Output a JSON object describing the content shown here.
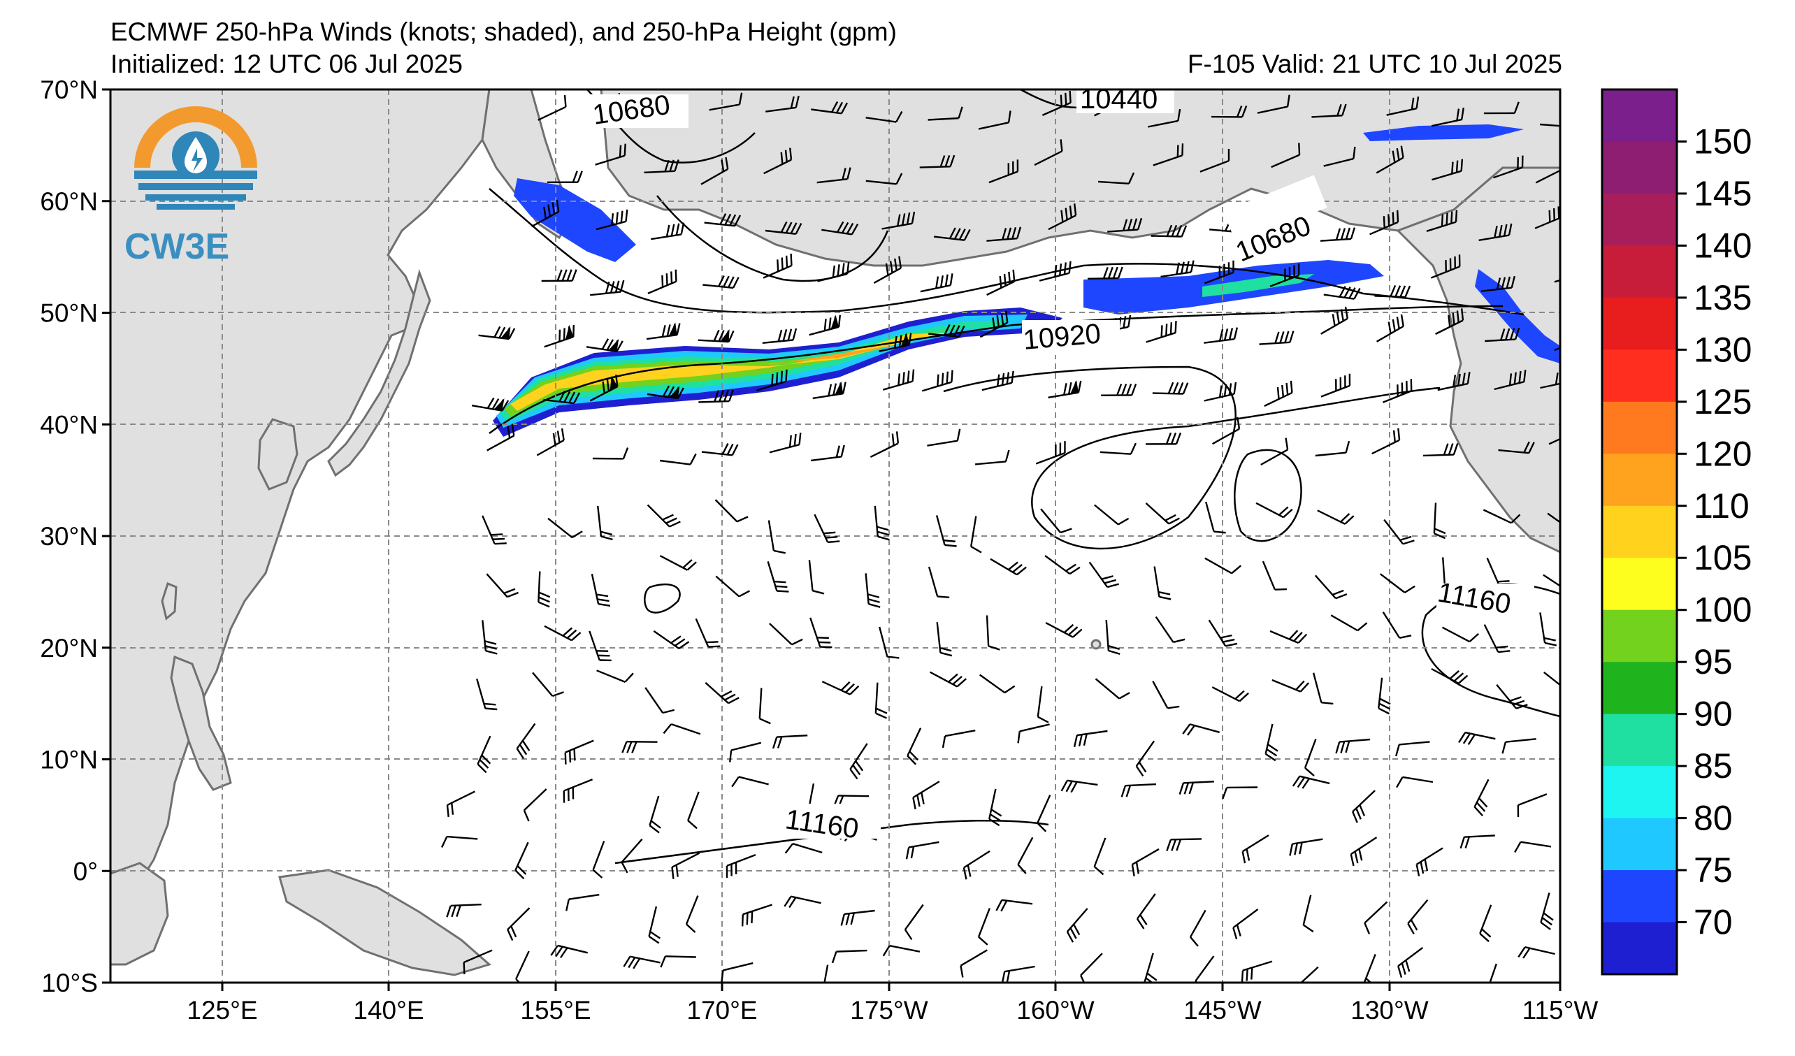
{
  "title": {
    "line1": "ECMWF 250-hPa Winds (knots; shaded), and 250-hPa Height (gpm)",
    "line2": "Initialized: 12 UTC 06 Jul 2025",
    "valid": "F-105  Valid: 21 UTC 10 Jul 2025"
  },
  "logo": {
    "text": "CW3E",
    "icon": "water-drop-sun-icon",
    "colors": {
      "orange": "#f39a2e",
      "blue": "#2f86b8"
    }
  },
  "lat_labels": [
    "70°N",
    "60°N",
    "50°N",
    "40°N",
    "30°N",
    "20°N",
    "10°N",
    "0°",
    "10°S"
  ],
  "lon_labels": [
    "125°E",
    "140°E",
    "155°E",
    "170°E",
    "175°W",
    "160°W",
    "145°W",
    "130°W",
    "115°W"
  ],
  "contour_labels": [
    "10680",
    "10440",
    "10680",
    "10920",
    "11160",
    "11160"
  ],
  "colorbar": {
    "ticks": [
      "150",
      "145",
      "140",
      "135",
      "130",
      "125",
      "120",
      "110",
      "105",
      "100",
      "95",
      "90",
      "85",
      "80",
      "75",
      "70"
    ],
    "colors": [
      "#7a1f8c",
      "#8e1e72",
      "#a81e5a",
      "#c81d3a",
      "#e81e1e",
      "#ff2e1e",
      "#ff7a1e",
      "#ffa21e",
      "#ffd21e",
      "#fdfd1e",
      "#72d21e",
      "#1fb41e",
      "#1fe0a0",
      "#1ff5f0",
      "#1fc8ff",
      "#1f46ff",
      "#1f1fd2"
    ]
  },
  "colors": {
    "land": "#e0e0e0",
    "coast": "#707070",
    "ocean": "#ffffff",
    "grid": "#8a8a8a"
  }
}
